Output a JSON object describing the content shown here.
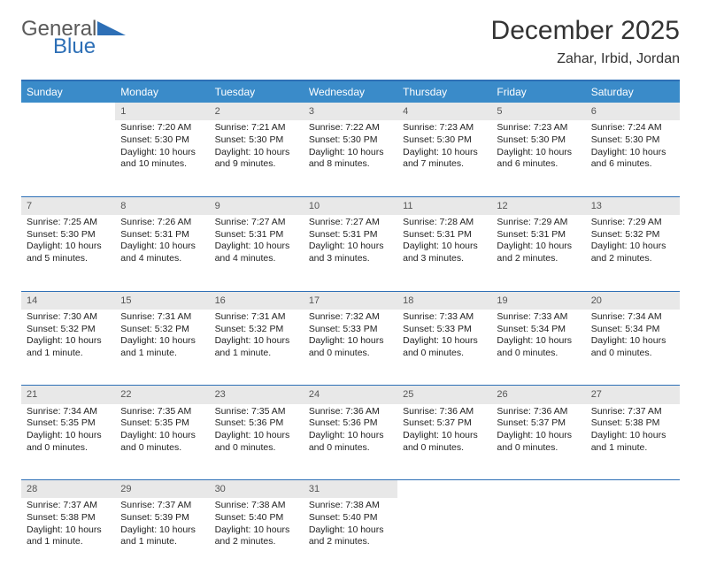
{
  "brand": {
    "word1": "General",
    "word2": "Blue"
  },
  "title": "December 2025",
  "location": "Zahar, Irbid, Jordan",
  "colors": {
    "accent": "#2d6fb6",
    "header_bg": "#3a8bc9",
    "daynum_bg": "#e8e8e8"
  },
  "weekdays": [
    "Sunday",
    "Monday",
    "Tuesday",
    "Wednesday",
    "Thursday",
    "Friday",
    "Saturday"
  ],
  "weeks": [
    {
      "nums": [
        "",
        "1",
        "2",
        "3",
        "4",
        "5",
        "6"
      ],
      "cells": [
        null,
        {
          "sunrise": "Sunrise: 7:20 AM",
          "sunset": "Sunset: 5:30 PM",
          "day1": "Daylight: 10 hours",
          "day2": "and 10 minutes."
        },
        {
          "sunrise": "Sunrise: 7:21 AM",
          "sunset": "Sunset: 5:30 PM",
          "day1": "Daylight: 10 hours",
          "day2": "and 9 minutes."
        },
        {
          "sunrise": "Sunrise: 7:22 AM",
          "sunset": "Sunset: 5:30 PM",
          "day1": "Daylight: 10 hours",
          "day2": "and 8 minutes."
        },
        {
          "sunrise": "Sunrise: 7:23 AM",
          "sunset": "Sunset: 5:30 PM",
          "day1": "Daylight: 10 hours",
          "day2": "and 7 minutes."
        },
        {
          "sunrise": "Sunrise: 7:23 AM",
          "sunset": "Sunset: 5:30 PM",
          "day1": "Daylight: 10 hours",
          "day2": "and 6 minutes."
        },
        {
          "sunrise": "Sunrise: 7:24 AM",
          "sunset": "Sunset: 5:30 PM",
          "day1": "Daylight: 10 hours",
          "day2": "and 6 minutes."
        }
      ]
    },
    {
      "nums": [
        "7",
        "8",
        "9",
        "10",
        "11",
        "12",
        "13"
      ],
      "cells": [
        {
          "sunrise": "Sunrise: 7:25 AM",
          "sunset": "Sunset: 5:30 PM",
          "day1": "Daylight: 10 hours",
          "day2": "and 5 minutes."
        },
        {
          "sunrise": "Sunrise: 7:26 AM",
          "sunset": "Sunset: 5:31 PM",
          "day1": "Daylight: 10 hours",
          "day2": "and 4 minutes."
        },
        {
          "sunrise": "Sunrise: 7:27 AM",
          "sunset": "Sunset: 5:31 PM",
          "day1": "Daylight: 10 hours",
          "day2": "and 4 minutes."
        },
        {
          "sunrise": "Sunrise: 7:27 AM",
          "sunset": "Sunset: 5:31 PM",
          "day1": "Daylight: 10 hours",
          "day2": "and 3 minutes."
        },
        {
          "sunrise": "Sunrise: 7:28 AM",
          "sunset": "Sunset: 5:31 PM",
          "day1": "Daylight: 10 hours",
          "day2": "and 3 minutes."
        },
        {
          "sunrise": "Sunrise: 7:29 AM",
          "sunset": "Sunset: 5:31 PM",
          "day1": "Daylight: 10 hours",
          "day2": "and 2 minutes."
        },
        {
          "sunrise": "Sunrise: 7:29 AM",
          "sunset": "Sunset: 5:32 PM",
          "day1": "Daylight: 10 hours",
          "day2": "and 2 minutes."
        }
      ]
    },
    {
      "nums": [
        "14",
        "15",
        "16",
        "17",
        "18",
        "19",
        "20"
      ],
      "cells": [
        {
          "sunrise": "Sunrise: 7:30 AM",
          "sunset": "Sunset: 5:32 PM",
          "day1": "Daylight: 10 hours",
          "day2": "and 1 minute."
        },
        {
          "sunrise": "Sunrise: 7:31 AM",
          "sunset": "Sunset: 5:32 PM",
          "day1": "Daylight: 10 hours",
          "day2": "and 1 minute."
        },
        {
          "sunrise": "Sunrise: 7:31 AM",
          "sunset": "Sunset: 5:32 PM",
          "day1": "Daylight: 10 hours",
          "day2": "and 1 minute."
        },
        {
          "sunrise": "Sunrise: 7:32 AM",
          "sunset": "Sunset: 5:33 PM",
          "day1": "Daylight: 10 hours",
          "day2": "and 0 minutes."
        },
        {
          "sunrise": "Sunrise: 7:33 AM",
          "sunset": "Sunset: 5:33 PM",
          "day1": "Daylight: 10 hours",
          "day2": "and 0 minutes."
        },
        {
          "sunrise": "Sunrise: 7:33 AM",
          "sunset": "Sunset: 5:34 PM",
          "day1": "Daylight: 10 hours",
          "day2": "and 0 minutes."
        },
        {
          "sunrise": "Sunrise: 7:34 AM",
          "sunset": "Sunset: 5:34 PM",
          "day1": "Daylight: 10 hours",
          "day2": "and 0 minutes."
        }
      ]
    },
    {
      "nums": [
        "21",
        "22",
        "23",
        "24",
        "25",
        "26",
        "27"
      ],
      "cells": [
        {
          "sunrise": "Sunrise: 7:34 AM",
          "sunset": "Sunset: 5:35 PM",
          "day1": "Daylight: 10 hours",
          "day2": "and 0 minutes."
        },
        {
          "sunrise": "Sunrise: 7:35 AM",
          "sunset": "Sunset: 5:35 PM",
          "day1": "Daylight: 10 hours",
          "day2": "and 0 minutes."
        },
        {
          "sunrise": "Sunrise: 7:35 AM",
          "sunset": "Sunset: 5:36 PM",
          "day1": "Daylight: 10 hours",
          "day2": "and 0 minutes."
        },
        {
          "sunrise": "Sunrise: 7:36 AM",
          "sunset": "Sunset: 5:36 PM",
          "day1": "Daylight: 10 hours",
          "day2": "and 0 minutes."
        },
        {
          "sunrise": "Sunrise: 7:36 AM",
          "sunset": "Sunset: 5:37 PM",
          "day1": "Daylight: 10 hours",
          "day2": "and 0 minutes."
        },
        {
          "sunrise": "Sunrise: 7:36 AM",
          "sunset": "Sunset: 5:37 PM",
          "day1": "Daylight: 10 hours",
          "day2": "and 0 minutes."
        },
        {
          "sunrise": "Sunrise: 7:37 AM",
          "sunset": "Sunset: 5:38 PM",
          "day1": "Daylight: 10 hours",
          "day2": "and 1 minute."
        }
      ]
    },
    {
      "nums": [
        "28",
        "29",
        "30",
        "31",
        "",
        "",
        ""
      ],
      "cells": [
        {
          "sunrise": "Sunrise: 7:37 AM",
          "sunset": "Sunset: 5:38 PM",
          "day1": "Daylight: 10 hours",
          "day2": "and 1 minute."
        },
        {
          "sunrise": "Sunrise: 7:37 AM",
          "sunset": "Sunset: 5:39 PM",
          "day1": "Daylight: 10 hours",
          "day2": "and 1 minute."
        },
        {
          "sunrise": "Sunrise: 7:38 AM",
          "sunset": "Sunset: 5:40 PM",
          "day1": "Daylight: 10 hours",
          "day2": "and 2 minutes."
        },
        {
          "sunrise": "Sunrise: 7:38 AM",
          "sunset": "Sunset: 5:40 PM",
          "day1": "Daylight: 10 hours",
          "day2": "and 2 minutes."
        },
        null,
        null,
        null
      ]
    }
  ]
}
